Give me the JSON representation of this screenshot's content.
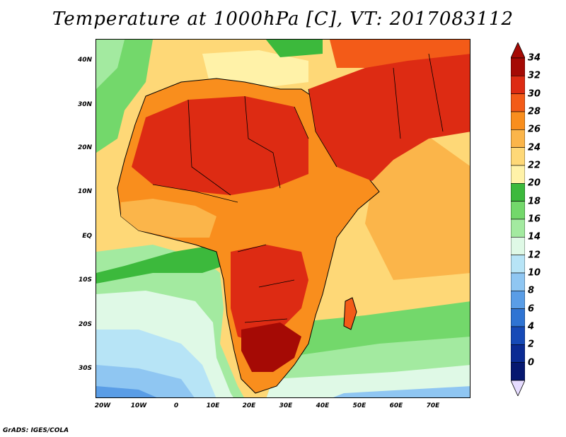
{
  "map": {
    "title": "Temperature at 1000hPa [C], VT: 2017083112",
    "credit": "GrADS: IGES/COLA",
    "lat_labels": [
      "40N",
      "30N",
      "20N",
      "10N",
      "EQ",
      "10S",
      "20S",
      "30S"
    ],
    "lon_labels": [
      "20W",
      "10W",
      "0",
      "10E",
      "20E",
      "30E",
      "40E",
      "50E",
      "60E",
      "70E"
    ],
    "colorbar": {
      "labels": [
        "34",
        "32",
        "30",
        "28",
        "26",
        "24",
        "22",
        "20",
        "18",
        "16",
        "14",
        "12",
        "10",
        "8",
        "6",
        "4",
        "2",
        "0"
      ],
      "colors": [
        "#a50a05",
        "#dd2b13",
        "#f35b18",
        "#f98e1d",
        "#fbb54a",
        "#fed877",
        "#fff2a8",
        "#3cb93c",
        "#73d86b",
        "#a3eaa0",
        "#dff9e6",
        "#b7e4f6",
        "#8fc6f2",
        "#5a9de6",
        "#2f74d3",
        "#164ab7",
        "#0b2b93",
        "#061870"
      ],
      "over_color": "#a50a05",
      "under_color": "#e6dcff"
    }
  }
}
